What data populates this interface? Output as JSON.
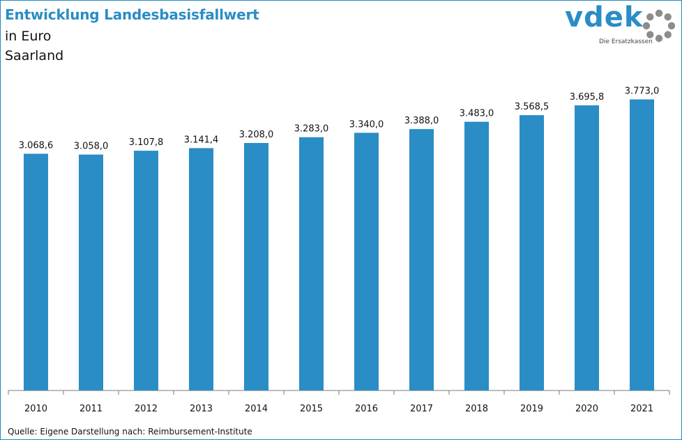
{
  "header": {
    "title": "Entwicklung Landesbasisfallwert",
    "line2": "in Euro",
    "line3": "Saarland"
  },
  "logo": {
    "text": "vdek",
    "tagline": "Die Ersatzkassen",
    "colors": {
      "primary": "#2a8dc5",
      "ring": "#8c8c8c"
    }
  },
  "source": "Quelle: Eigene Darstellung nach: Reimbursement-Institute",
  "colors": {
    "bar": "#2a8dc5",
    "frame": "#1f8bc1",
    "title": "#2a8dc5"
  },
  "chart_data": {
    "type": "bar",
    "categories": [
      "2010",
      "2011",
      "2012",
      "2013",
      "2014",
      "2015",
      "2016",
      "2017",
      "2018",
      "2019",
      "2020",
      "2021"
    ],
    "values": [
      3068.6,
      3058.0,
      3107.8,
      3141.4,
      3208.0,
      3283.0,
      3340.0,
      3388.0,
      3483.0,
      3568.5,
      3695.8,
      3773.0
    ],
    "labels": [
      "3.068,6",
      "3.058,0",
      "3.107,8",
      "3.141,4",
      "3.208,0",
      "3.283,0",
      "3.340,0",
      "3.388,0",
      "3.483,0",
      "3.568,5",
      "3.695,8",
      "3.773,0"
    ],
    "title": "Entwicklung Landesbasisfallwert",
    "xlabel": "",
    "ylabel": "",
    "ylim": [
      0,
      4320
    ],
    "grid": false,
    "legend": "none"
  }
}
